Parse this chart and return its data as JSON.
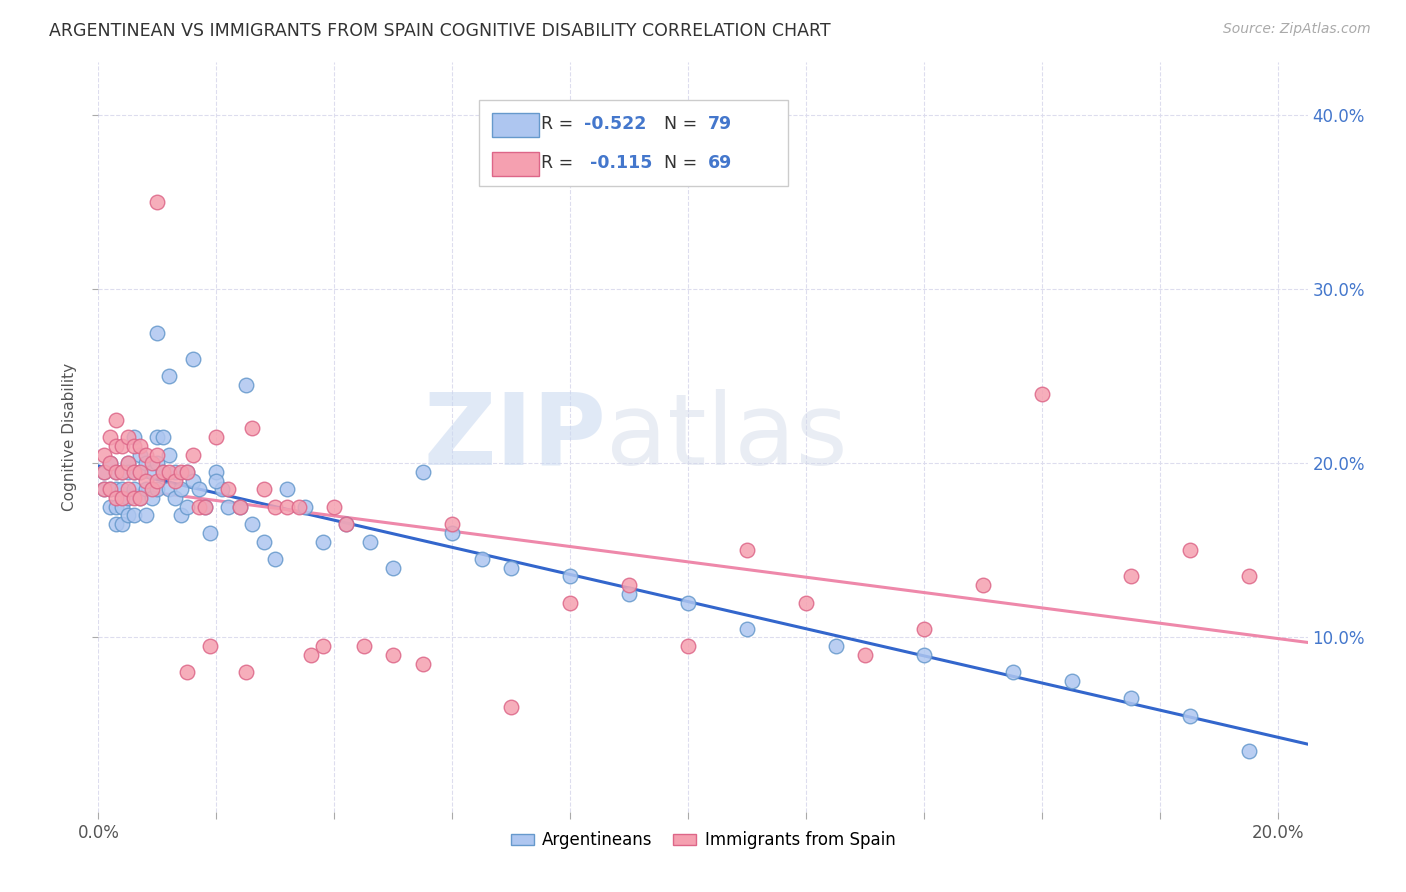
{
  "title": "ARGENTINEAN VS IMMIGRANTS FROM SPAIN COGNITIVE DISABILITY CORRELATION CHART",
  "source": "Source: ZipAtlas.com",
  "ylabel": "Cognitive Disability",
  "watermark": "ZIPatlas",
  "x_min": 0.0,
  "x_max": 0.205,
  "y_min": 0.0,
  "y_max": 0.43,
  "x_ticks": [
    0.0,
    0.02,
    0.04,
    0.06,
    0.08,
    0.1,
    0.12,
    0.14,
    0.16,
    0.18,
    0.2
  ],
  "x_tick_labels": [
    "0.0%",
    "",
    "",
    "",
    "",
    "",
    "",
    "",
    "",
    "",
    "20.0%"
  ],
  "y_ticks": [
    0.1,
    0.2,
    0.3,
    0.4
  ],
  "y_tick_labels": [
    "10.0%",
    "20.0%",
    "30.0%",
    "40.0%"
  ],
  "argentina_color": "#aec6f0",
  "spain_color": "#f5a0b0",
  "argentina_edge": "#6699cc",
  "spain_edge": "#dd6688",
  "line_argentina": "#3366cc",
  "line_spain": "#ee88aa",
  "R_argentina": -0.522,
  "N_argentina": 79,
  "R_spain": -0.115,
  "N_spain": 69,
  "argentina_x": [
    0.001,
    0.001,
    0.002,
    0.002,
    0.002,
    0.003,
    0.003,
    0.003,
    0.003,
    0.004,
    0.004,
    0.004,
    0.004,
    0.005,
    0.005,
    0.005,
    0.005,
    0.006,
    0.006,
    0.006,
    0.006,
    0.007,
    0.007,
    0.007,
    0.008,
    0.008,
    0.008,
    0.009,
    0.009,
    0.01,
    0.01,
    0.01,
    0.011,
    0.011,
    0.012,
    0.012,
    0.013,
    0.013,
    0.014,
    0.014,
    0.015,
    0.015,
    0.016,
    0.017,
    0.018,
    0.019,
    0.02,
    0.021,
    0.022,
    0.024,
    0.026,
    0.028,
    0.03,
    0.032,
    0.035,
    0.038,
    0.042,
    0.046,
    0.05,
    0.055,
    0.06,
    0.065,
    0.07,
    0.08,
    0.09,
    0.1,
    0.11,
    0.125,
    0.14,
    0.155,
    0.165,
    0.175,
    0.185,
    0.195,
    0.01,
    0.012,
    0.016,
    0.02,
    0.025
  ],
  "argentina_y": [
    0.195,
    0.185,
    0.2,
    0.185,
    0.175,
    0.195,
    0.185,
    0.175,
    0.165,
    0.195,
    0.185,
    0.175,
    0.165,
    0.2,
    0.195,
    0.18,
    0.17,
    0.215,
    0.195,
    0.185,
    0.17,
    0.205,
    0.195,
    0.18,
    0.2,
    0.185,
    0.17,
    0.195,
    0.18,
    0.215,
    0.2,
    0.185,
    0.215,
    0.195,
    0.205,
    0.185,
    0.195,
    0.18,
    0.185,
    0.17,
    0.195,
    0.175,
    0.19,
    0.185,
    0.175,
    0.16,
    0.195,
    0.185,
    0.175,
    0.175,
    0.165,
    0.155,
    0.145,
    0.185,
    0.175,
    0.155,
    0.165,
    0.155,
    0.14,
    0.195,
    0.16,
    0.145,
    0.14,
    0.135,
    0.125,
    0.12,
    0.105,
    0.095,
    0.09,
    0.08,
    0.075,
    0.065,
    0.055,
    0.035,
    0.275,
    0.25,
    0.26,
    0.19,
    0.245
  ],
  "spain_x": [
    0.001,
    0.001,
    0.001,
    0.002,
    0.002,
    0.002,
    0.003,
    0.003,
    0.003,
    0.003,
    0.004,
    0.004,
    0.004,
    0.005,
    0.005,
    0.005,
    0.006,
    0.006,
    0.006,
    0.007,
    0.007,
    0.007,
    0.008,
    0.008,
    0.009,
    0.009,
    0.01,
    0.01,
    0.011,
    0.012,
    0.013,
    0.014,
    0.015,
    0.016,
    0.017,
    0.018,
    0.019,
    0.02,
    0.022,
    0.024,
    0.026,
    0.028,
    0.03,
    0.032,
    0.034,
    0.036,
    0.038,
    0.04,
    0.042,
    0.045,
    0.05,
    0.055,
    0.06,
    0.07,
    0.08,
    0.09,
    0.1,
    0.11,
    0.12,
    0.13,
    0.14,
    0.15,
    0.16,
    0.175,
    0.185,
    0.195,
    0.01,
    0.015,
    0.025
  ],
  "spain_y": [
    0.205,
    0.195,
    0.185,
    0.215,
    0.2,
    0.185,
    0.225,
    0.21,
    0.195,
    0.18,
    0.21,
    0.195,
    0.18,
    0.215,
    0.2,
    0.185,
    0.21,
    0.195,
    0.18,
    0.21,
    0.195,
    0.18,
    0.205,
    0.19,
    0.2,
    0.185,
    0.205,
    0.19,
    0.195,
    0.195,
    0.19,
    0.195,
    0.195,
    0.205,
    0.175,
    0.175,
    0.095,
    0.215,
    0.185,
    0.175,
    0.22,
    0.185,
    0.175,
    0.175,
    0.175,
    0.09,
    0.095,
    0.175,
    0.165,
    0.095,
    0.09,
    0.085,
    0.165,
    0.06,
    0.12,
    0.13,
    0.095,
    0.15,
    0.12,
    0.09,
    0.105,
    0.13,
    0.24,
    0.135,
    0.15,
    0.135,
    0.35,
    0.08,
    0.08
  ]
}
